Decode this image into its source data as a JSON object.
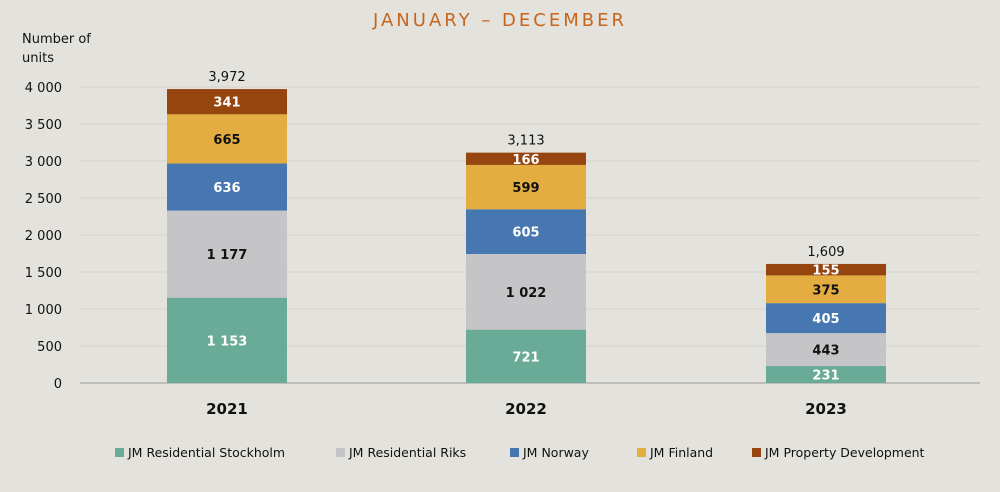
{
  "chart_data": {
    "type": "bar",
    "stacked": true,
    "subtitle": "JANUARY – DECEMBER",
    "ylabel": "Number of units",
    "xlabel": "",
    "ylim": [
      0,
      4000
    ],
    "yticks": [
      0,
      500,
      1000,
      1500,
      2000,
      2500,
      3000,
      3500,
      4000
    ],
    "ytick_labels": [
      "0",
      "500",
      "1 000",
      "1 500",
      "2 000",
      "2 500",
      "3 000",
      "3 500",
      "4 000"
    ],
    "grid": true,
    "legend_position": "bottom",
    "categories": [
      "2021",
      "2022",
      "2023"
    ],
    "totals": [
      3972,
      3113,
      1609
    ],
    "total_labels": [
      "3,972",
      "3,113",
      "1,609"
    ],
    "series": [
      {
        "name": "JM Residential Stockholm",
        "color": "#6aab97",
        "label_color": "#ffffff",
        "values": [
          1153,
          721,
          231
        ],
        "labels": [
          "1 153",
          "721",
          "231"
        ]
      },
      {
        "name": "JM Residential Riks",
        "color": "#c5c5c7",
        "label_color": "#111111",
        "values": [
          1177,
          1022,
          443
        ],
        "labels": [
          "1 177",
          "1 022",
          "443"
        ]
      },
      {
        "name": "JM Norway",
        "color": "#4677b0",
        "label_color": "#ffffff",
        "values": [
          636,
          605,
          405
        ],
        "labels": [
          "636",
          "605",
          "405"
        ]
      },
      {
        "name": "JM Finland",
        "color": "#e3ad42",
        "label_color": "#111111",
        "values": [
          665,
          599,
          375
        ],
        "labels": [
          "665",
          "599",
          "375"
        ]
      },
      {
        "name": "JM Property Development",
        "color": "#97450f",
        "label_color": "#ffffff",
        "values": [
          341,
          166,
          155
        ],
        "labels": [
          "341",
          "166",
          "155"
        ]
      }
    ]
  }
}
